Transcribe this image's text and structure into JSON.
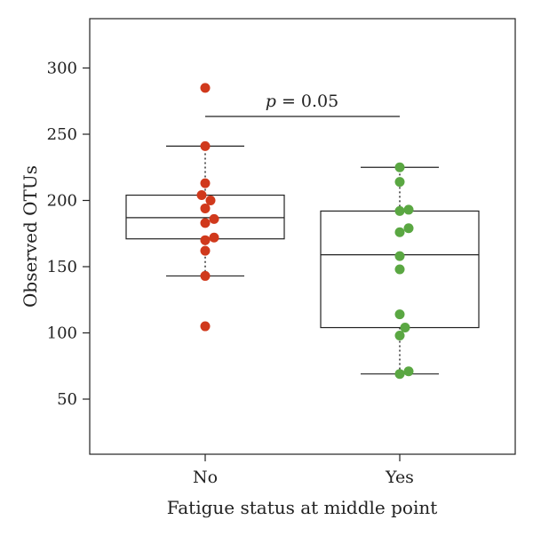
{
  "chart_data": {
    "type": "box",
    "xlabel": "Fatigue status at middle point",
    "ylabel": "Observed OTUs",
    "ylim": [
      10,
      333
    ],
    "yticks": [
      50,
      100,
      150,
      200,
      250,
      300
    ],
    "categories": [
      "No",
      "Yes"
    ],
    "annotation": {
      "italic": "p",
      "rest": " = 0.05"
    },
    "groups": [
      {
        "name": "No",
        "color": "#d0391c",
        "box": {
          "q1": 171,
          "median": 187,
          "q3": 204,
          "whisker_low": 143,
          "whisker_high": 241
        },
        "points": [
          {
            "value": 285,
            "jitter": 0.0
          },
          {
            "value": 241,
            "jitter": 0.0
          },
          {
            "value": 213,
            "jitter": 0.0
          },
          {
            "value": 204,
            "jitter": -0.02
          },
          {
            "value": 200,
            "jitter": 0.03
          },
          {
            "value": 194,
            "jitter": 0.0
          },
          {
            "value": 186,
            "jitter": 0.05
          },
          {
            "value": 183,
            "jitter": 0.0
          },
          {
            "value": 172,
            "jitter": 0.05
          },
          {
            "value": 170,
            "jitter": 0.0
          },
          {
            "value": 162,
            "jitter": 0.0
          },
          {
            "value": 143,
            "jitter": 0.0
          },
          {
            "value": 105,
            "jitter": 0.0
          }
        ]
      },
      {
        "name": "Yes",
        "color": "#5aa742",
        "box": {
          "q1": 104,
          "median": 159,
          "q3": 192,
          "whisker_low": 69,
          "whisker_high": 225
        },
        "points": [
          {
            "value": 225,
            "jitter": 0.0
          },
          {
            "value": 214,
            "jitter": 0.0
          },
          {
            "value": 193,
            "jitter": 0.05
          },
          {
            "value": 192,
            "jitter": 0.0
          },
          {
            "value": 179,
            "jitter": 0.05
          },
          {
            "value": 176,
            "jitter": 0.0
          },
          {
            "value": 158,
            "jitter": 0.0
          },
          {
            "value": 148,
            "jitter": 0.0
          },
          {
            "value": 114,
            "jitter": 0.0
          },
          {
            "value": 104,
            "jitter": 0.03
          },
          {
            "value": 98,
            "jitter": 0.0
          },
          {
            "value": 71,
            "jitter": 0.05
          },
          {
            "value": 69,
            "jitter": 0.0
          }
        ]
      }
    ]
  }
}
